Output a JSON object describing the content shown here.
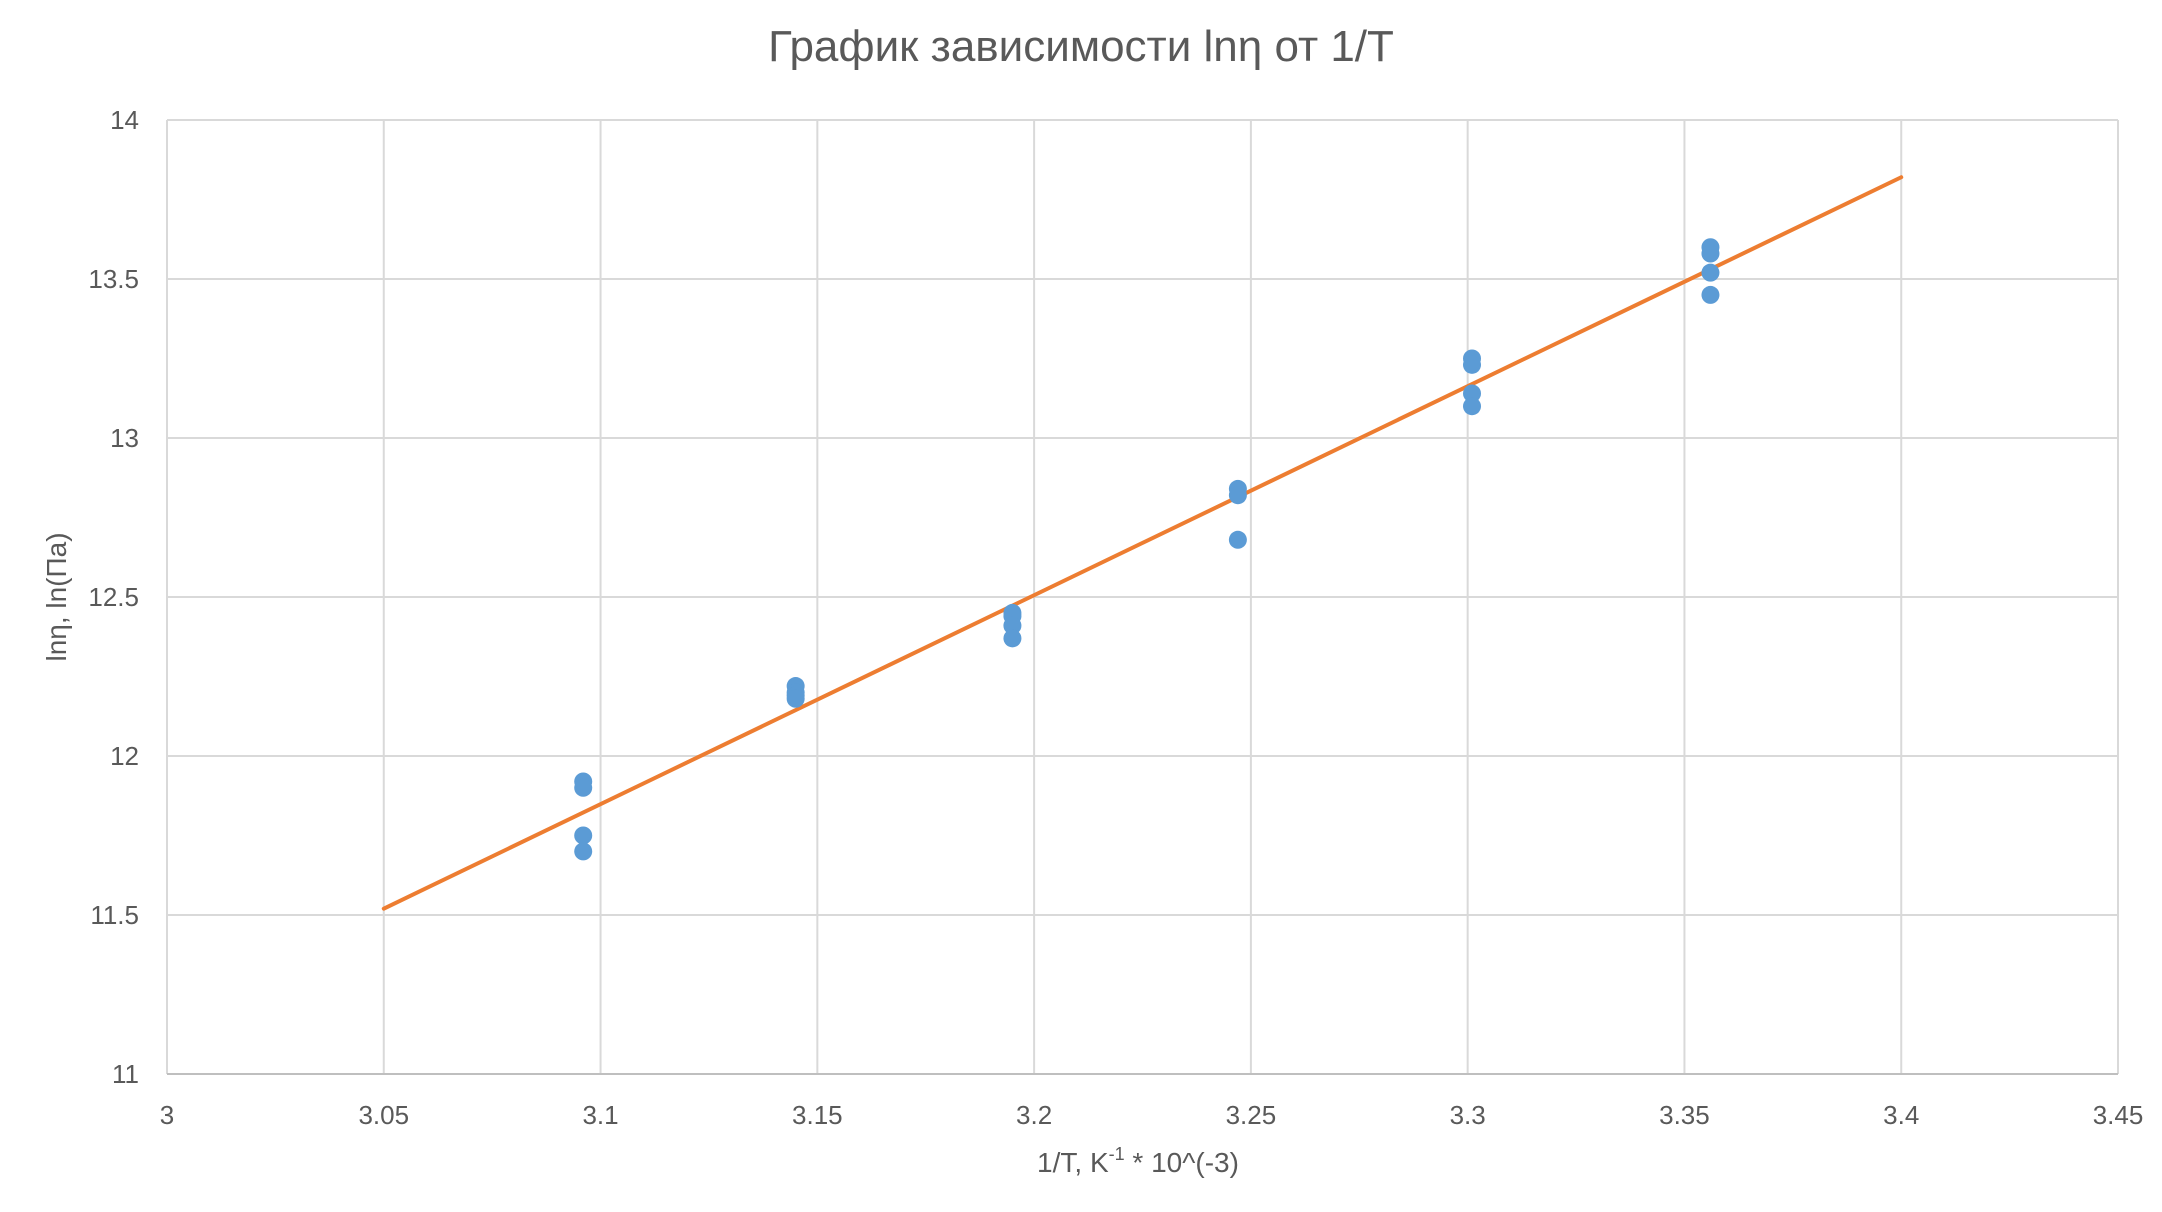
{
  "chart_data": {
    "type": "scatter",
    "title": "График зависимости lnη от 1/T",
    "xlabel": {
      "pre": "1/T, K",
      "sup": "-1",
      "post": " * 10^(-3)"
    },
    "ylabel": "lnη, ln(Па)",
    "xlim": [
      3,
      3.45
    ],
    "ylim": [
      11,
      14
    ],
    "xticks": [
      3,
      3.05,
      3.1,
      3.15,
      3.2,
      3.25,
      3.3,
      3.35,
      3.4,
      3.45
    ],
    "xtick_labels": [
      "3",
      "3.05",
      "3.1",
      "3.15",
      "3.2",
      "3.25",
      "3.3",
      "3.35",
      "3.4",
      "3.45"
    ],
    "yticks": [
      11,
      11.5,
      12,
      12.5,
      13,
      13.5,
      14
    ],
    "ytick_labels": [
      "11",
      "11.5",
      "12",
      "12.5",
      "13",
      "13.5",
      "14"
    ],
    "grid": true,
    "legend": "none",
    "series": [
      {
        "kind": "points",
        "color": "#5B9BD5",
        "x": [
          3.096,
          3.096,
          3.096,
          3.096,
          3.145,
          3.145,
          3.145,
          3.145,
          3.195,
          3.195,
          3.195,
          3.195,
          3.247,
          3.247,
          3.247,
          3.301,
          3.301,
          3.301,
          3.301,
          3.356,
          3.356,
          3.356,
          3.356
        ],
        "y": [
          11.92,
          11.9,
          11.75,
          11.7,
          12.22,
          12.2,
          12.19,
          12.18,
          12.45,
          12.44,
          12.41,
          12.37,
          12.84,
          12.82,
          12.68,
          13.25,
          13.23,
          13.14,
          13.1,
          13.6,
          13.58,
          13.52,
          13.45
        ]
      },
      {
        "kind": "trendline",
        "color": "#ED7D31",
        "x": [
          3.05,
          3.4
        ],
        "y": [
          11.52,
          13.82
        ]
      }
    ]
  }
}
